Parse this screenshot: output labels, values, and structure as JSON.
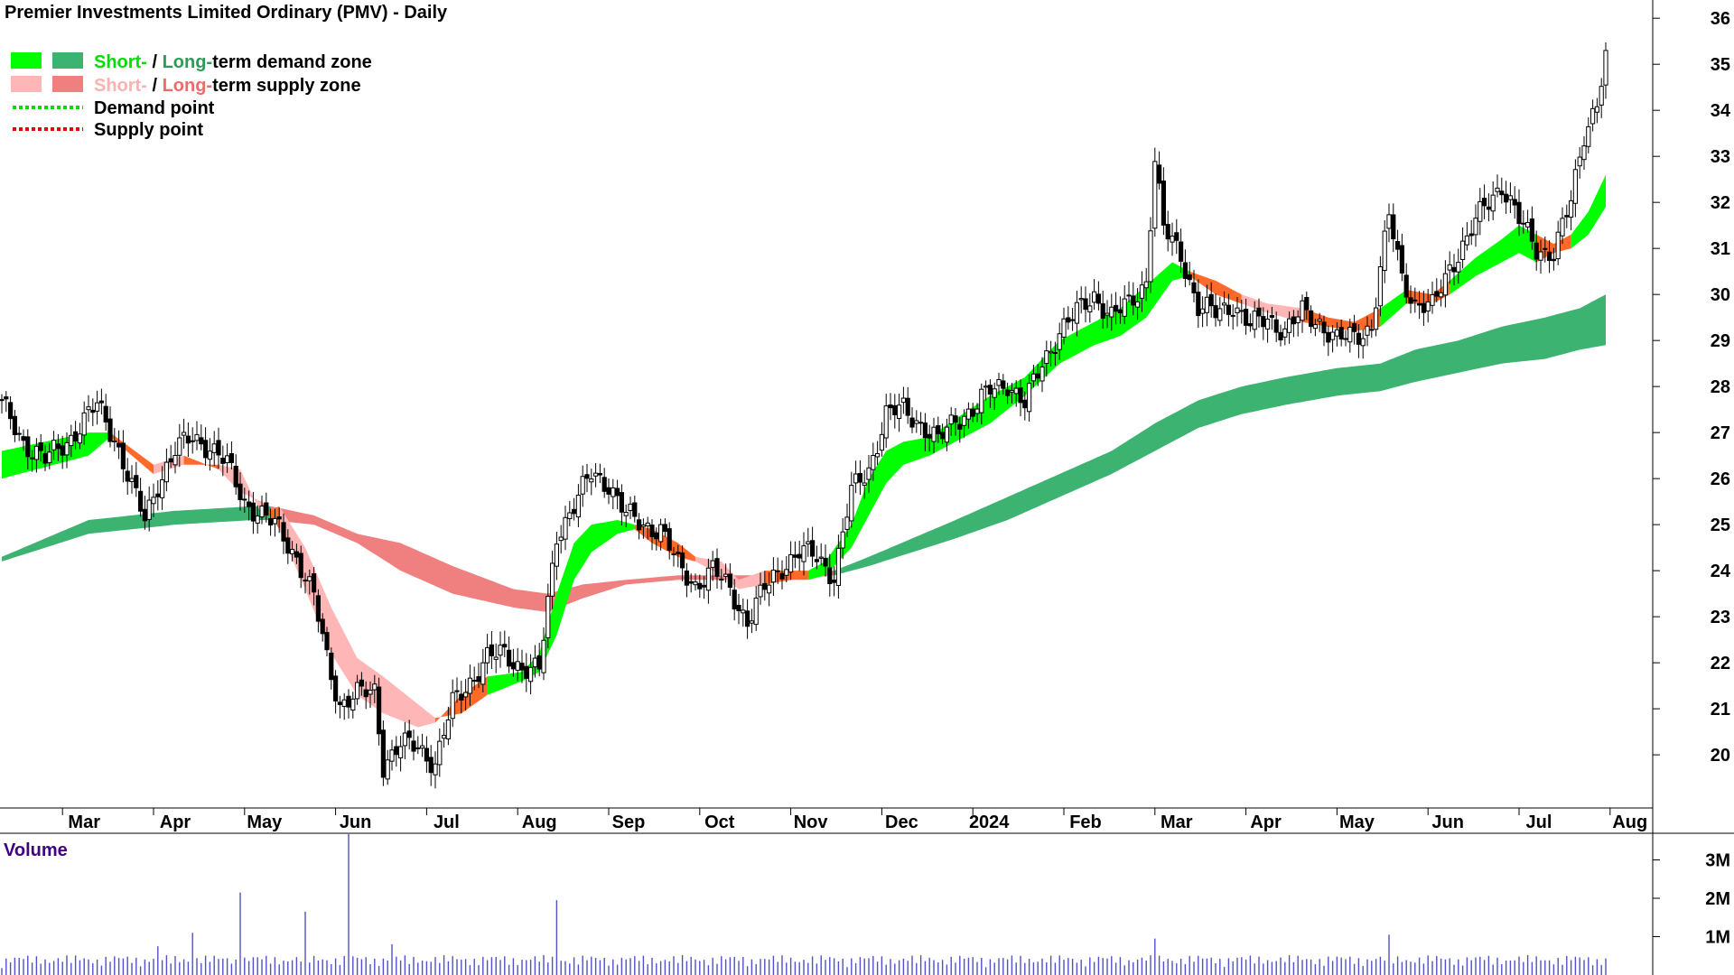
{
  "chart_data": {
    "type": "candlestick",
    "title": "Premier Investments Limited Ordinary (PMV) - Daily",
    "legend": {
      "placement": "top-left",
      "items": [
        {
          "parts": [
            "Short-",
            " / ",
            "Long-",
            "term demand zone"
          ]
        },
        {
          "parts": [
            "Short-",
            " / ",
            "Long-",
            "term supply zone"
          ]
        },
        {
          "parts": [
            "Demand point"
          ]
        },
        {
          "parts": [
            "Supply point"
          ]
        }
      ]
    },
    "price_axis": {
      "position": "right",
      "ticks": [
        "20",
        "21",
        "22",
        "23",
        "24",
        "25",
        "26",
        "27",
        "28",
        "29",
        "30",
        "31",
        "32",
        "33",
        "34",
        "35",
        "36"
      ],
      "ylim": [
        19.1,
        36.2
      ]
    },
    "x_labels": [
      "Mar",
      "Apr",
      "May",
      "Jun",
      "Jul",
      "Aug",
      "Sep",
      "Oct",
      "Nov",
      "Dec",
      "2024",
      "Feb",
      "Mar",
      "Apr",
      "May",
      "Jun",
      "Jul",
      "Aug"
    ],
    "volume_panel": {
      "title": "Volume",
      "ticks": [
        "1M",
        "2M",
        "3M"
      ],
      "ylim": [
        0,
        3.6
      ],
      "spikes": [
        {
          "bar": 55,
          "value": 2.15
        },
        {
          "bar": 70,
          "value": 1.65
        },
        {
          "bar": 80,
          "value": 3.7
        },
        {
          "bar": 128,
          "value": 1.95
        },
        {
          "bar": 44,
          "value": 1.1
        },
        {
          "bar": 266,
          "value": 0.95
        },
        {
          "bar": 320,
          "value": 1.05
        },
        {
          "bar": 36,
          "value": 0.75
        },
        {
          "bar": 90,
          "value": 0.8
        }
      ]
    },
    "series": [
      {
        "kind": "close",
        "anchors": [
          [
            0,
            27.6
          ],
          [
            5,
            26.8
          ],
          [
            10,
            26.4
          ],
          [
            16,
            26.9
          ],
          [
            22,
            27.6
          ],
          [
            26,
            26.9
          ],
          [
            30,
            25.8
          ],
          [
            33,
            25.1
          ],
          [
            36,
            25.9
          ],
          [
            40,
            26.6
          ],
          [
            44,
            26.9
          ],
          [
            48,
            26.7
          ],
          [
            52,
            26.3
          ],
          [
            56,
            25.5
          ],
          [
            60,
            25.2
          ],
          [
            64,
            24.9
          ],
          [
            68,
            24.3
          ],
          [
            72,
            23.4
          ],
          [
            75,
            22.1
          ],
          [
            78,
            21.1
          ],
          [
            82,
            21.3
          ],
          [
            86,
            21.4
          ],
          [
            88,
            19.8
          ],
          [
            92,
            20.2
          ],
          [
            96,
            20.2
          ],
          [
            100,
            19.8
          ],
          [
            104,
            21.1
          ],
          [
            108,
            21.6
          ],
          [
            112,
            22.1
          ],
          [
            116,
            22.2
          ],
          [
            120,
            21.9
          ],
          [
            124,
            21.8
          ],
          [
            128,
            24.8
          ],
          [
            132,
            25.4
          ],
          [
            136,
            26.1
          ],
          [
            140,
            25.9
          ],
          [
            144,
            25.2
          ],
          [
            148,
            25.0
          ],
          [
            152,
            24.9
          ],
          [
            156,
            24.1
          ],
          [
            160,
            23.7
          ],
          [
            164,
            24.0
          ],
          [
            168,
            23.6
          ],
          [
            172,
            22.9
          ],
          [
            176,
            23.6
          ],
          [
            180,
            24.1
          ],
          [
            184,
            24.4
          ],
          [
            188,
            24.3
          ],
          [
            192,
            23.9
          ],
          [
            196,
            25.7
          ],
          [
            200,
            26.2
          ],
          [
            204,
            27.4
          ],
          [
            208,
            27.5
          ],
          [
            212,
            27.2
          ],
          [
            216,
            26.8
          ],
          [
            220,
            27.3
          ],
          [
            224,
            27.5
          ],
          [
            228,
            27.9
          ],
          [
            232,
            28.1
          ],
          [
            236,
            27.6
          ],
          [
            240,
            28.5
          ],
          [
            244,
            29.2
          ],
          [
            248,
            29.6
          ],
          [
            252,
            30.0
          ],
          [
            256,
            29.5
          ],
          [
            260,
            29.8
          ],
          [
            264,
            30.3
          ],
          [
            266,
            32.9
          ],
          [
            268,
            31.4
          ],
          [
            272,
            30.9
          ],
          [
            274,
            30.3
          ],
          [
            276,
            29.7
          ],
          [
            280,
            29.6
          ],
          [
            284,
            29.8
          ],
          [
            288,
            29.3
          ],
          [
            292,
            29.5
          ],
          [
            296,
            29.2
          ],
          [
            300,
            29.6
          ],
          [
            304,
            29.4
          ],
          [
            308,
            29.0
          ],
          [
            312,
            29.1
          ],
          [
            316,
            29.3
          ],
          [
            320,
            31.7
          ],
          [
            323,
            30.4
          ],
          [
            326,
            29.8
          ],
          [
            330,
            29.7
          ],
          [
            334,
            30.6
          ],
          [
            338,
            31.2
          ],
          [
            342,
            31.9
          ],
          [
            346,
            32.4
          ],
          [
            350,
            31.6
          ],
          [
            354,
            31.0
          ],
          [
            358,
            30.9
          ],
          [
            362,
            32.0
          ],
          [
            365,
            33.5
          ],
          [
            368,
            34.2
          ],
          [
            370,
            35.1
          ]
        ]
      },
      {
        "kind": "short_term_zone",
        "anchors": [
          [
            0,
            26.0,
            26.6,
            "demand"
          ],
          [
            20,
            26.5,
            27.0,
            "demand"
          ],
          [
            25,
            26.9,
            27.0,
            "supply"
          ],
          [
            35,
            26.1,
            26.3,
            "supply_light"
          ],
          [
            42,
            26.3,
            26.5,
            "supply"
          ],
          [
            50,
            26.3,
            26.2,
            "supply_light"
          ],
          [
            55,
            26.2,
            25.7,
            "supply_light"
          ],
          [
            60,
            25.2,
            25.5,
            "supply"
          ],
          [
            64,
            25.4,
            24.9,
            "supply_light"
          ],
          [
            70,
            24.5,
            23.6,
            "supply_light"
          ],
          [
            76,
            23.2,
            22.2,
            "supply_light"
          ],
          [
            82,
            22.1,
            21.3,
            "supply_light"
          ],
          [
            88,
            21.7,
            20.9,
            "supply_light"
          ],
          [
            96,
            21.1,
            20.6,
            "supply_light"
          ],
          [
            100,
            20.8,
            20.7,
            "supply"
          ],
          [
            106,
            20.9,
            21.3,
            "supply"
          ],
          [
            112,
            21.3,
            21.7,
            "demand"
          ],
          [
            120,
            21.6,
            21.8,
            "demand"
          ],
          [
            124,
            21.8,
            22.2,
            "demand"
          ],
          [
            128,
            22.6,
            23.5,
            "demand"
          ],
          [
            132,
            23.8,
            24.6,
            "demand"
          ],
          [
            136,
            24.4,
            25.0,
            "demand"
          ],
          [
            142,
            24.8,
            25.1,
            "demand"
          ],
          [
            146,
            24.9,
            25.0,
            "supply"
          ],
          [
            150,
            24.6,
            24.9,
            "supply"
          ],
          [
            156,
            24.3,
            24.6,
            "supply"
          ],
          [
            160,
            24.2,
            24.3,
            "supply_light"
          ],
          [
            166,
            23.9,
            24.2,
            "supply_light"
          ],
          [
            170,
            23.6,
            23.8,
            "supply_light"
          ],
          [
            176,
            23.7,
            24.0,
            "supply"
          ],
          [
            182,
            23.8,
            24.0,
            "supply"
          ],
          [
            186,
            23.8,
            24.0,
            "demand"
          ],
          [
            190,
            23.9,
            24.2,
            "demand"
          ],
          [
            196,
            24.5,
            25.0,
            "demand"
          ],
          [
            200,
            25.2,
            26.0,
            "demand"
          ],
          [
            204,
            25.9,
            26.6,
            "demand"
          ],
          [
            208,
            26.3,
            26.8,
            "demand"
          ],
          [
            214,
            26.5,
            26.9,
            "demand"
          ],
          [
            220,
            26.8,
            27.3,
            "demand"
          ],
          [
            228,
            27.2,
            27.8,
            "demand"
          ],
          [
            236,
            27.8,
            28.2,
            "demand"
          ],
          [
            244,
            28.5,
            29.0,
            "demand"
          ],
          [
            252,
            28.9,
            29.4,
            "demand"
          ],
          [
            258,
            29.1,
            29.7,
            "demand"
          ],
          [
            264,
            29.5,
            30.2,
            "demand"
          ],
          [
            270,
            30.3,
            30.7,
            "demand"
          ],
          [
            274,
            30.4,
            30.5,
            "supply"
          ],
          [
            280,
            30.0,
            30.3,
            "supply"
          ],
          [
            286,
            29.8,
            30.0,
            "supply_light"
          ],
          [
            292,
            29.6,
            29.8,
            "supply_light"
          ],
          [
            300,
            29.4,
            29.7,
            "supply"
          ],
          [
            306,
            29.3,
            29.5,
            "supply"
          ],
          [
            312,
            29.2,
            29.4,
            "supply"
          ],
          [
            318,
            29.3,
            29.7,
            "demand"
          ],
          [
            324,
            29.8,
            30.1,
            "supply"
          ],
          [
            330,
            29.8,
            30.0,
            "supply"
          ],
          [
            334,
            30.0,
            30.3,
            "demand"
          ],
          [
            340,
            30.4,
            30.8,
            "demand"
          ],
          [
            346,
            30.7,
            31.2,
            "demand"
          ],
          [
            350,
            30.9,
            31.5,
            "demand"
          ],
          [
            354,
            30.7,
            31.3,
            "supply"
          ],
          [
            358,
            30.9,
            31.1,
            "supply"
          ],
          [
            362,
            31.0,
            31.3,
            "demand"
          ],
          [
            366,
            31.3,
            31.8,
            "demand"
          ],
          [
            370,
            31.9,
            32.6,
            "demand"
          ]
        ]
      },
      {
        "kind": "long_term_zone",
        "anchors": [
          [
            0,
            24.2,
            24.3,
            "demand"
          ],
          [
            20,
            24.8,
            25.1,
            "demand"
          ],
          [
            40,
            25.0,
            25.3,
            "demand"
          ],
          [
            58,
            25.1,
            25.4,
            "demand"
          ],
          [
            62,
            25.1,
            25.4,
            "supply"
          ],
          [
            72,
            25.0,
            25.2,
            "supply"
          ],
          [
            82,
            24.6,
            24.8,
            "supply"
          ],
          [
            92,
            24.0,
            24.6,
            "supply"
          ],
          [
            104,
            23.5,
            24.1,
            "supply"
          ],
          [
            118,
            23.2,
            23.6,
            "supply"
          ],
          [
            126,
            23.1,
            23.5,
            "supply"
          ],
          [
            134,
            23.4,
            23.7,
            "supply"
          ],
          [
            144,
            23.7,
            23.8,
            "supply"
          ],
          [
            156,
            23.8,
            23.9,
            "supply"
          ],
          [
            170,
            23.8,
            23.9,
            "supply"
          ],
          [
            182,
            23.8,
            23.9,
            "supply"
          ],
          [
            192,
            23.9,
            24.0,
            "demand"
          ],
          [
            200,
            24.1,
            24.3,
            "demand"
          ],
          [
            210,
            24.4,
            24.7,
            "demand"
          ],
          [
            220,
            24.7,
            25.1,
            "demand"
          ],
          [
            232,
            25.1,
            25.6,
            "demand"
          ],
          [
            244,
            25.6,
            26.1,
            "demand"
          ],
          [
            256,
            26.1,
            26.6,
            "demand"
          ],
          [
            266,
            26.6,
            27.2,
            "demand"
          ],
          [
            276,
            27.1,
            27.7,
            "demand"
          ],
          [
            286,
            27.4,
            28.0,
            "demand"
          ],
          [
            296,
            27.6,
            28.2,
            "demand"
          ],
          [
            308,
            27.8,
            28.4,
            "demand"
          ],
          [
            318,
            27.9,
            28.5,
            "demand"
          ],
          [
            326,
            28.1,
            28.8,
            "demand"
          ],
          [
            336,
            28.3,
            29.0,
            "demand"
          ],
          [
            346,
            28.5,
            29.3,
            "demand"
          ],
          [
            356,
            28.6,
            29.5,
            "demand"
          ],
          [
            364,
            28.8,
            29.7,
            "demand"
          ],
          [
            370,
            28.9,
            30.0,
            "demand"
          ]
        ]
      }
    ],
    "colors": {
      "short_demand": "#00ff00",
      "long_demand": "#3cb371",
      "short_supply": "#ffb6b6",
      "long_supply": "#f08080",
      "supply_dark": "#ff6a2a",
      "demand_point": "#00dd00",
      "supply_point": "#ee0000",
      "volume_bar": "#5050c8",
      "candle": "#000000",
      "legend_supply_text": "#f07a2a"
    }
  }
}
